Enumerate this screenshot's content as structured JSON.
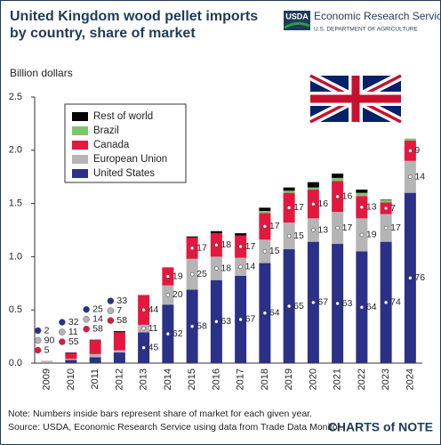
{
  "chart_data": {
    "type": "stacked_bar",
    "title": "United Kingdom wood pellet imports by country, share of market",
    "y_label": "Billion dollars",
    "categories": [
      "2009",
      "2010",
      "2011",
      "2012",
      "2013",
      "2014",
      "2015",
      "2016",
      "2017",
      "2018",
      "2019",
      "2020",
      "2021",
      "2022",
      "2023",
      "2024"
    ],
    "series": [
      {
        "name": "United States",
        "color": "#2b3187",
        "values": [
          0.002,
          0.03,
          0.055,
          0.1,
          0.29,
          0.55,
          0.69,
          0.78,
          0.82,
          0.94,
          1.07,
          1.14,
          1.12,
          1.05,
          1.14,
          1.6
        ],
        "shares": [
          2,
          32,
          25,
          33,
          45,
          62,
          58,
          63,
          67,
          64,
          65,
          67,
          63,
          64,
          74,
          76
        ]
      },
      {
        "name": "European Union",
        "color": "#b5b5b5",
        "values": [
          0.018,
          0.01,
          0.03,
          0.02,
          0.07,
          0.18,
          0.29,
          0.22,
          0.17,
          0.22,
          0.25,
          0.22,
          0.3,
          0.31,
          0.26,
          0.3
        ],
        "shares": [
          90,
          11,
          14,
          7,
          11,
          20,
          25,
          18,
          14,
          15,
          15,
          13,
          17,
          19,
          17,
          14
        ]
      },
      {
        "name": "Canada",
        "color": "#e5173f",
        "values": [
          0.001,
          0.055,
          0.13,
          0.17,
          0.28,
          0.17,
          0.2,
          0.22,
          0.21,
          0.25,
          0.28,
          0.27,
          0.29,
          0.21,
          0.11,
          0.19
        ],
        "shares": [
          5,
          55,
          58,
          58,
          44,
          19,
          17,
          18,
          17,
          17,
          17,
          16,
          16,
          13,
          7,
          9
        ]
      },
      {
        "name": "Brazil",
        "color": "#7dc46f",
        "values": [
          0,
          0,
          0,
          0,
          0,
          0,
          0,
          0,
          0,
          0.02,
          0.02,
          0.02,
          0.03,
          0.03,
          0.02,
          0.02
        ]
      },
      {
        "name": "Rest of world",
        "color": "#000000",
        "values": [
          0,
          0.005,
          0.005,
          0.01,
          0,
          0,
          0.01,
          0.02,
          0.02,
          0.03,
          0.03,
          0.05,
          0.04,
          0.03,
          0.005,
          0
        ]
      }
    ],
    "ylim": [
      0,
      2.5
    ],
    "yticks": [
      {
        "value": 0,
        "label": "0.0"
      },
      0.5,
      {
        "value": 1,
        "label": "1.0"
      },
      1.5,
      {
        "value": 2,
        "label": "2.0"
      },
      2.5
    ],
    "grid": false,
    "note": "Note: Numbers inside bars represent share of market for each given year.",
    "source": "Source: USDA, Economic Research Service using data from Trade Data Monitor."
  },
  "branding": {
    "agency": "USDA",
    "service": "Economic Research Service",
    "department": "U.S. DEPARTMENT OF AGRICULTURE",
    "footer_logo": "CHARTS of NOTE"
  }
}
